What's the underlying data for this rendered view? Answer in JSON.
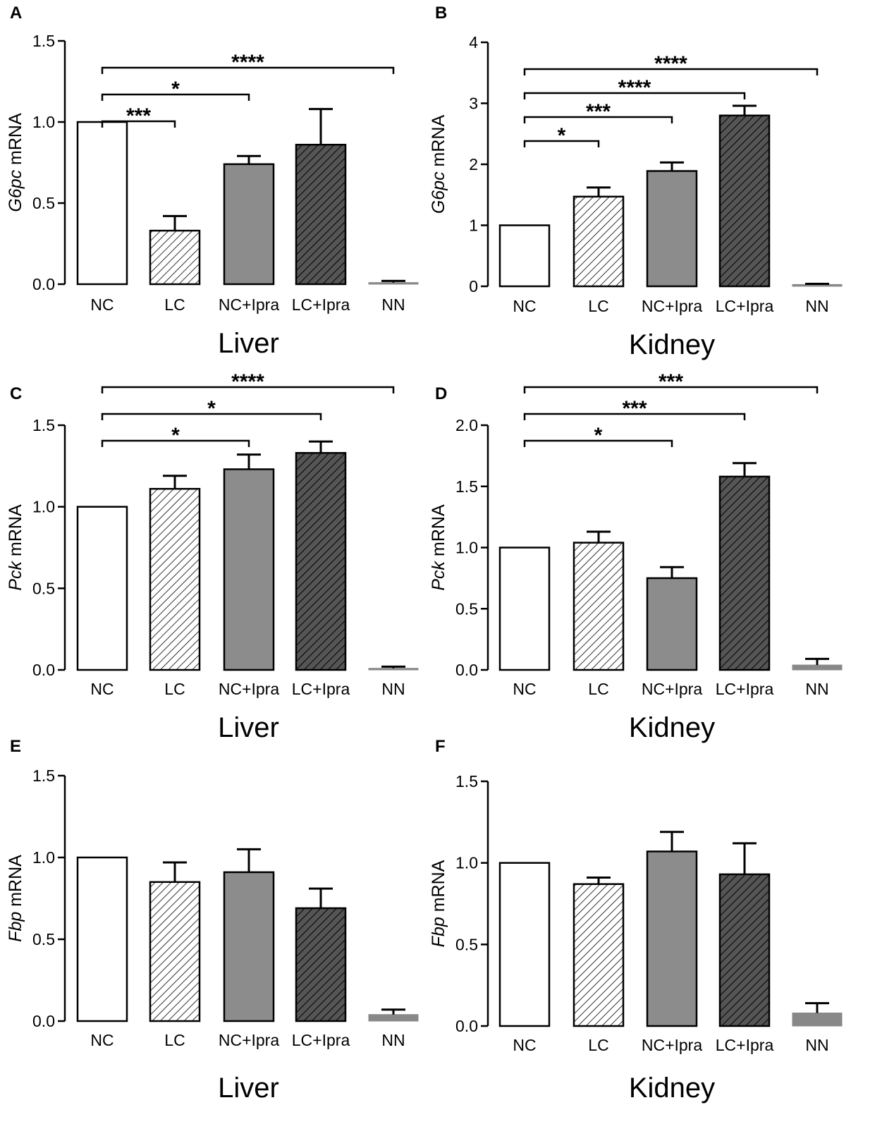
{
  "colors": {
    "nc_fill": "#ffffff",
    "lc_fill": "#ffffff",
    "ncipra_fill": "#8c8c8c",
    "lcipra_fill": "#555555",
    "nn_fill": "#888888",
    "stroke": "#000000"
  },
  "chart_data": [
    {
      "panel": "A",
      "type": "bar",
      "tissue": "Liver",
      "gene": "G6pc",
      "ylabel_suffix": " mRNA",
      "categories": [
        "NC",
        "LC",
        "NC+Ipra",
        "LC+Ipra",
        "NN"
      ],
      "values": [
        1.0,
        0.33,
        0.74,
        0.86,
        0.01
      ],
      "errors": [
        0,
        0.09,
        0.05,
        0.22,
        0.01
      ],
      "ylim": [
        0,
        1.5
      ],
      "yticks": [
        "0.0",
        "0.5",
        "1.0",
        "1.5"
      ],
      "significance": [
        {
          "from": 0,
          "to": 1,
          "label": "***",
          "level": 0
        },
        {
          "from": 0,
          "to": 2,
          "label": "*",
          "level": 1
        },
        {
          "from": 0,
          "to": 4,
          "label": "****",
          "level": 2
        }
      ]
    },
    {
      "panel": "B",
      "type": "bar",
      "tissue": "Kidney",
      "gene": "G6pc",
      "ylabel_suffix": " mRNA",
      "categories": [
        "NC",
        "LC",
        "NC+Ipra",
        "LC+Ipra",
        "NN"
      ],
      "values": [
        1.0,
        1.47,
        1.89,
        2.8,
        0.03
      ],
      "errors": [
        0,
        0.15,
        0.14,
        0.16,
        0.01
      ],
      "ylim": [
        0,
        4
      ],
      "yticks": [
        "0",
        "1",
        "2",
        "3",
        "4"
      ],
      "significance": [
        {
          "from": 0,
          "to": 1,
          "label": "*",
          "level": 0
        },
        {
          "from": 0,
          "to": 2,
          "label": "***",
          "level": 1
        },
        {
          "from": 0,
          "to": 3,
          "label": "****",
          "level": 2
        },
        {
          "from": 0,
          "to": 4,
          "label": "****",
          "level": 3
        }
      ]
    },
    {
      "panel": "C",
      "type": "bar",
      "tissue": "Liver",
      "gene": "Pck",
      "ylabel_suffix": " mRNA",
      "categories": [
        "NC",
        "LC",
        "NC+Ipra",
        "LC+Ipra",
        "NN"
      ],
      "values": [
        1.0,
        1.11,
        1.23,
        1.33,
        0.01
      ],
      "errors": [
        0,
        0.08,
        0.09,
        0.07,
        0.01
      ],
      "ylim": [
        0,
        1.5
      ],
      "yticks": [
        "0.0",
        "0.5",
        "1.0",
        "1.5"
      ],
      "significance": [
        {
          "from": 0,
          "to": 2,
          "label": "*",
          "level": 0
        },
        {
          "from": 0,
          "to": 3,
          "label": "*",
          "level": 1
        },
        {
          "from": 0,
          "to": 4,
          "label": "****",
          "level": 2
        }
      ]
    },
    {
      "panel": "D",
      "type": "bar",
      "tissue": "Kidney",
      "gene": "Pck",
      "ylabel_suffix": " mRNA",
      "categories": [
        "NC",
        "LC",
        "NC+Ipra",
        "LC+Ipra",
        "NN"
      ],
      "values": [
        1.0,
        1.04,
        0.75,
        1.58,
        0.04
      ],
      "errors": [
        0,
        0.09,
        0.09,
        0.11,
        0.05
      ],
      "ylim": [
        0,
        2.0
      ],
      "yticks": [
        "0.0",
        "0.5",
        "1.0",
        "1.5",
        "2.0"
      ],
      "significance": [
        {
          "from": 0,
          "to": 2,
          "label": "*",
          "level": 0
        },
        {
          "from": 0,
          "to": 3,
          "label": "***",
          "level": 1
        },
        {
          "from": 0,
          "to": 4,
          "label": "***",
          "level": 2
        }
      ]
    },
    {
      "panel": "E",
      "type": "bar",
      "tissue": "Liver",
      "gene": "Fbp",
      "ylabel_suffix": " mRNA",
      "categories": [
        "NC",
        "LC",
        "NC+Ipra",
        "LC+Ipra",
        "NN"
      ],
      "values": [
        1.0,
        0.85,
        0.91,
        0.69,
        0.04
      ],
      "errors": [
        0,
        0.12,
        0.14,
        0.12,
        0.03
      ],
      "ylim": [
        0,
        1.5
      ],
      "yticks": [
        "0.0",
        "0.5",
        "1.0",
        "1.5"
      ],
      "significance": []
    },
    {
      "panel": "F",
      "type": "bar",
      "tissue": "Kidney",
      "gene": "Fbp",
      "ylabel_suffix": " mRNA",
      "categories": [
        "NC",
        "LC",
        "NC+Ipra",
        "LC+Ipra",
        "NN"
      ],
      "values": [
        1.0,
        0.87,
        1.07,
        0.93,
        0.08
      ],
      "errors": [
        0,
        0.04,
        0.12,
        0.19,
        0.06
      ],
      "ylim": [
        0,
        1.5
      ],
      "yticks": [
        "0.0",
        "0.5",
        "1.0",
        "1.5"
      ],
      "significance": []
    }
  ]
}
